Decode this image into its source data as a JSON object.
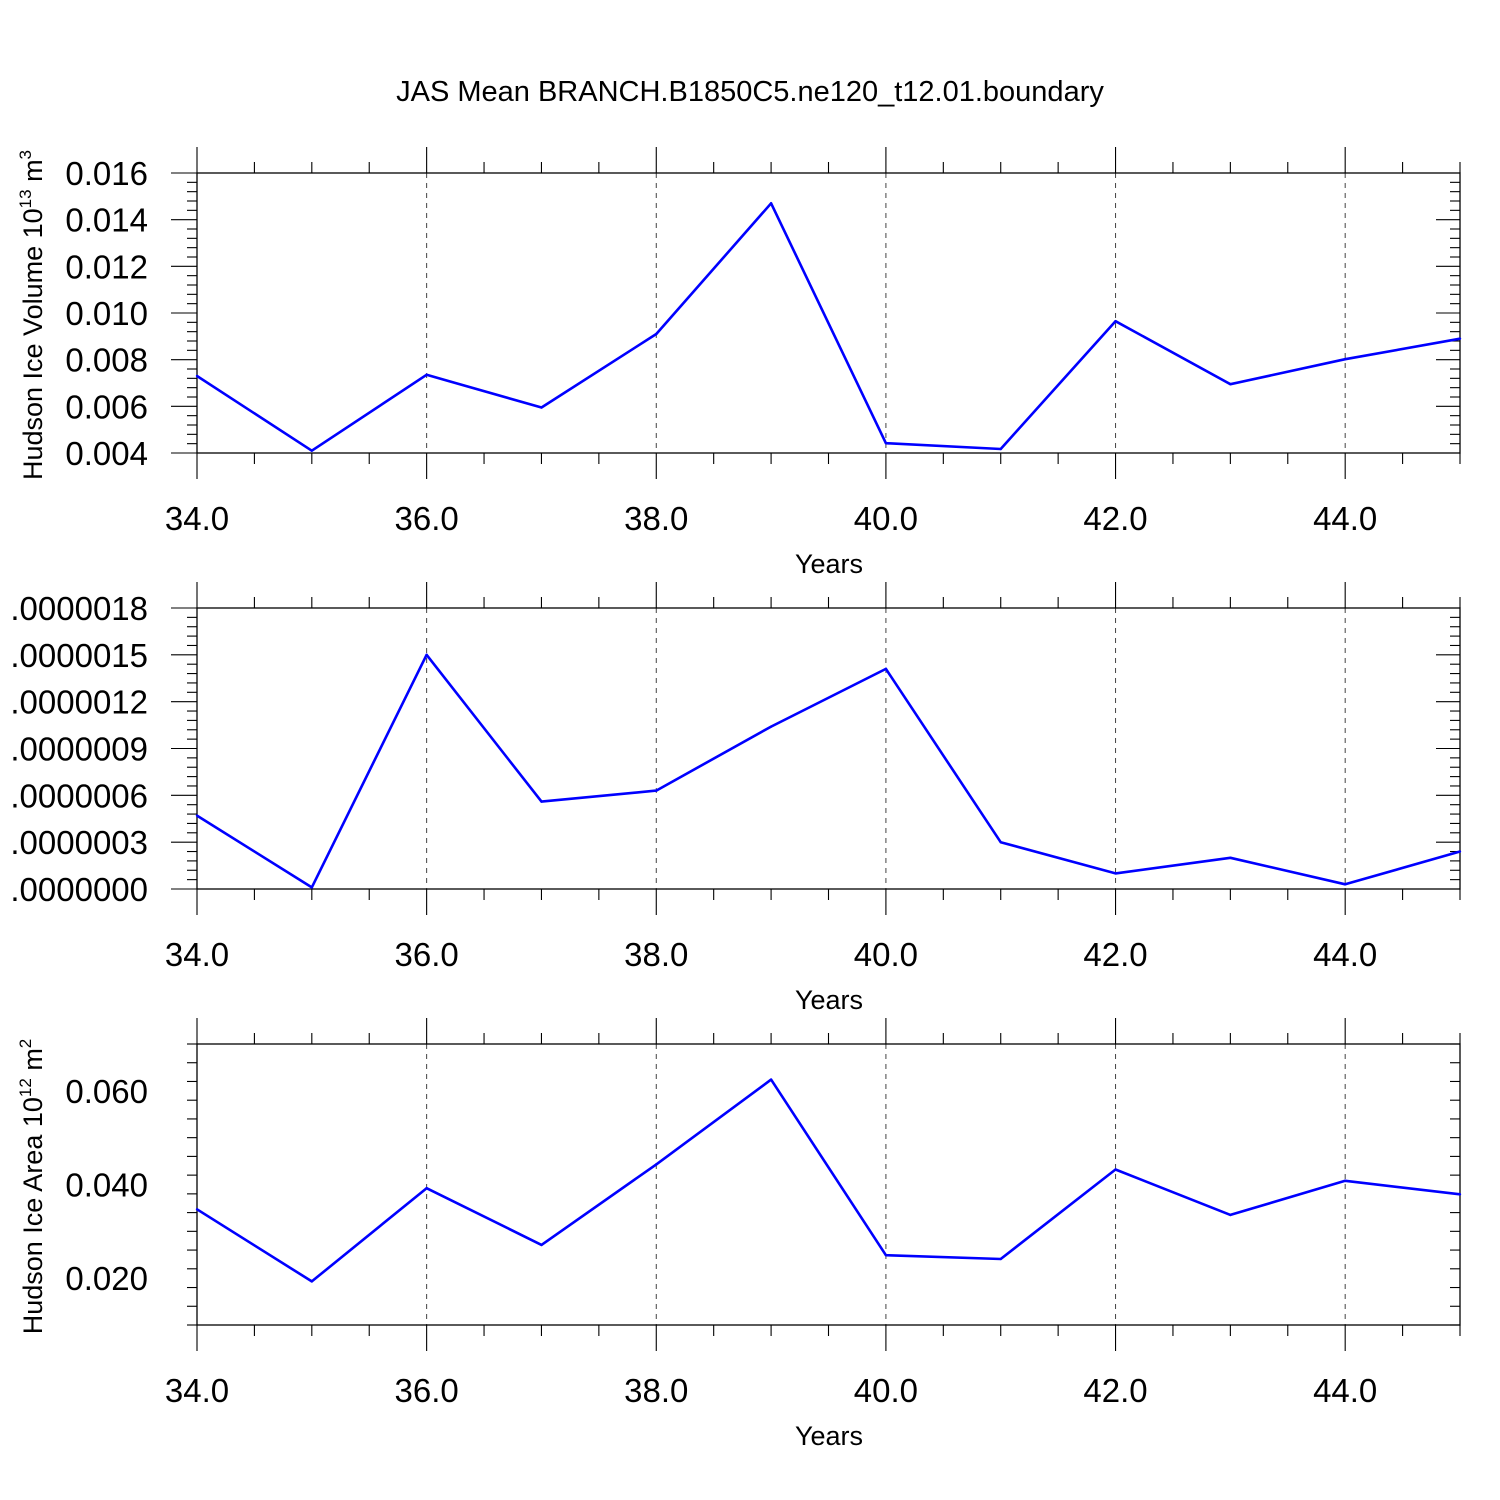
{
  "title": "JAS Mean BRANCH.B1850C5.ne120_t12.01.boundary",
  "colors": {
    "line": "#0000ff",
    "axis": "#000000",
    "grid": "#444444"
  },
  "chart_data": [
    {
      "type": "line",
      "x": [
        34,
        35,
        36,
        37,
        38,
        39,
        40,
        41,
        42,
        43,
        44,
        45
      ],
      "series": [
        {
          "values": [
            0.0073,
            0.0041,
            0.00735,
            0.00595,
            0.0091,
            0.0147,
            0.00442,
            0.00417,
            0.00965,
            0.00695,
            0.00802,
            0.0089
          ]
        }
      ],
      "xlabel": "Years",
      "ylabel": "Hudson Ice Volume",
      "ylabel_unit_base": "10",
      "ylabel_unit_exp": "13",
      "ylabel_unit_suffix": "m",
      "ylabel_unit_suffix_exp": "3",
      "xlim": [
        34,
        45
      ],
      "ylim": [
        0.004,
        0.016
      ],
      "xticks": [
        34,
        36,
        38,
        40,
        42,
        44
      ],
      "xtick_labels": [
        "34.0",
        "36.0",
        "38.0",
        "40.0",
        "42.0",
        "44.0"
      ],
      "yticks": [
        0.004,
        0.006,
        0.008,
        0.01,
        0.012,
        0.014,
        0.016
      ],
      "ytick_labels": [
        "0.004",
        "0.006",
        "0.008",
        "0.010",
        "0.012",
        "0.014",
        "0.016"
      ],
      "grid": "vertical-dashed"
    },
    {
      "type": "line",
      "x": [
        34,
        35,
        36,
        37,
        38,
        39,
        40,
        41,
        42,
        43,
        44,
        45
      ],
      "series": [
        {
          "values": [
            4.7e-07,
            1e-08,
            1.5e-06,
            5.6e-07,
            6.3e-07,
            1.04e-06,
            1.41e-06,
            3e-07,
            1e-07,
            2e-07,
            3e-08,
            2.4e-07
          ]
        }
      ],
      "xlabel": "Years",
      "ylabel": "",
      "xlim": [
        34,
        45
      ],
      "ylim": [
        0,
        1.8e-06
      ],
      "xticks": [
        34,
        36,
        38,
        40,
        42,
        44
      ],
      "xtick_labels": [
        "34.0",
        "36.0",
        "38.0",
        "40.0",
        "42.0",
        "44.0"
      ],
      "yticks": [
        0,
        3e-07,
        6e-07,
        9e-07,
        1.2e-06,
        1.5e-06,
        1.8e-06
      ],
      "ytick_labels": [
        ".0000000",
        ".0000003",
        ".0000006",
        ".0000009",
        ".0000012",
        ".0000015",
        ".0000018"
      ],
      "grid": "vertical-dashed"
    },
    {
      "type": "line",
      "x": [
        34,
        35,
        36,
        37,
        38,
        39,
        40,
        41,
        42,
        43,
        44,
        45
      ],
      "series": [
        {
          "values": [
            0.0347,
            0.0193,
            0.0392,
            0.0271,
            0.0443,
            0.0624,
            0.0249,
            0.0241,
            0.0432,
            0.0335,
            0.0408,
            0.0379
          ]
        }
      ],
      "xlabel": "Years",
      "ylabel": "Hudson Ice Area",
      "ylabel_unit_base": "10",
      "ylabel_unit_exp": "12",
      "ylabel_unit_suffix": "m",
      "ylabel_unit_suffix_exp": "2",
      "xlim": [
        34,
        45
      ],
      "ylim": [
        0.01,
        0.07
      ],
      "xticks": [
        34,
        36,
        38,
        40,
        42,
        44
      ],
      "xtick_labels": [
        "34.0",
        "36.0",
        "38.0",
        "40.0",
        "42.0",
        "44.0"
      ],
      "yticks": [
        0.02,
        0.04,
        0.06
      ],
      "ytick_labels": [
        "0.020",
        "0.040",
        "0.060"
      ],
      "grid": "vertical-dashed"
    }
  ]
}
